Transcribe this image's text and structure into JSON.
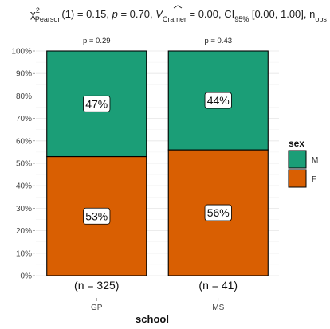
{
  "chart_data": {
    "type": "bar",
    "stacked": true,
    "title_parts": {
      "chi": "χ",
      "chi_sup": "2",
      "chi_sub": "Pearson",
      "stat": "(1) = 0.15, ",
      "p_label": "p",
      "p_value": " = 0.70, ",
      "v_symbol": "V",
      "v_sub": "Cramer",
      "v_value": " = 0.00, CI",
      "ci_sub": "95%",
      "ci_value": " [0.00, 1.00], n",
      "n_sub": "obs"
    },
    "xlabel": "school",
    "ylabel": "",
    "ylim": [
      0,
      100
    ],
    "y_ticks": [
      "0%",
      "10%",
      "20%",
      "30%",
      "40%",
      "50%",
      "60%",
      "70%",
      "80%",
      "90%",
      "100%"
    ],
    "categories": [
      "GP",
      "MS"
    ],
    "p_labels": [
      "p = 0.29",
      "p = 0.43"
    ],
    "n_labels": [
      "(n = 325)",
      "(n = 41)"
    ],
    "series": [
      {
        "name": "F",
        "color": "#d95f02",
        "values": [
          53,
          56
        ],
        "labels": [
          "53%",
          "56%"
        ]
      },
      {
        "name": "M",
        "color": "#1b9e77",
        "values": [
          47,
          44
        ],
        "labels": [
          "47%",
          "44%"
        ]
      }
    ],
    "legend": {
      "title": "sex",
      "position": "right",
      "items": [
        {
          "label": "M",
          "color": "#1b9e77"
        },
        {
          "label": "F",
          "color": "#d95f02"
        }
      ]
    },
    "grid": true
  }
}
